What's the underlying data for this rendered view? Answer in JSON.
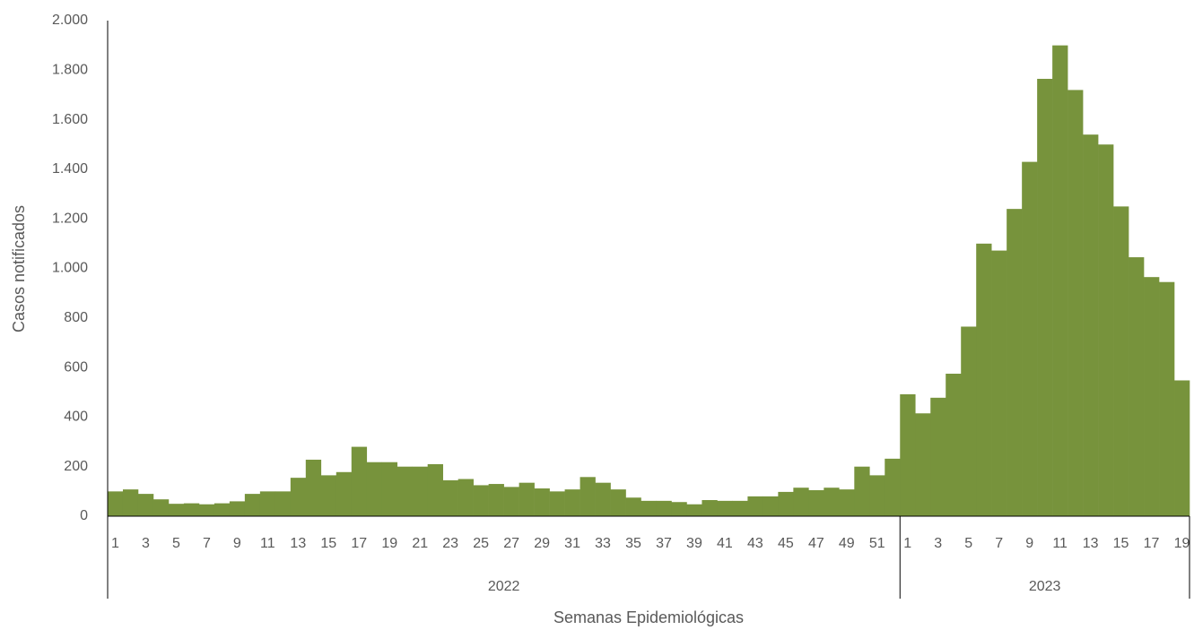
{
  "chart_data": {
    "type": "bar",
    "x_label": "Semanas Epidemiológicas",
    "y_label": "Casos notificados",
    "color": "#77933c",
    "grid": false,
    "groups": [
      {
        "name": "2022",
        "count": 52
      },
      {
        "name": "2023",
        "count": 19
      }
    ],
    "categories": [
      "1",
      null,
      "3",
      null,
      "5",
      null,
      "7",
      null,
      "9",
      null,
      "11",
      null,
      "13",
      null,
      "15",
      null,
      "17",
      null,
      "19",
      null,
      "21",
      null,
      "23",
      null,
      "25",
      null,
      "27",
      null,
      "29",
      null,
      "31",
      null,
      "33",
      null,
      "35",
      null,
      "37",
      null,
      "39",
      null,
      "41",
      null,
      "43",
      null,
      "45",
      null,
      "47",
      null,
      "49",
      null,
      "51",
      null,
      "1",
      null,
      "3",
      null,
      "5",
      null,
      "7",
      null,
      "9",
      null,
      "11",
      null,
      "13",
      null,
      "15",
      null,
      "17",
      null,
      "19"
    ],
    "values": [
      100,
      108,
      90,
      68,
      50,
      52,
      48,
      52,
      60,
      90,
      100,
      100,
      155,
      228,
      165,
      178,
      280,
      218,
      218,
      200,
      200,
      210,
      145,
      150,
      125,
      130,
      118,
      135,
      112,
      100,
      108,
      158,
      135,
      108,
      75,
      62,
      62,
      57,
      48,
      65,
      62,
      62,
      80,
      80,
      98,
      115,
      105,
      115,
      108,
      200,
      165,
      232,
      492,
      415,
      478,
      575,
      765,
      1100,
      1072,
      1240,
      1430,
      1765,
      1900,
      1720,
      1540,
      1500,
      1250,
      1045,
      965,
      945,
      548
    ],
    "ylim": [
      0,
      2000
    ],
    "yticks": [
      0,
      200,
      400,
      600,
      800,
      {
        "value": 1000,
        "label": "1.000"
      },
      {
        "value": 1200,
        "label": "1.200"
      },
      {
        "value": 1400,
        "label": "1.400"
      },
      {
        "value": 1600,
        "label": "1.600"
      },
      {
        "value": 1800,
        "label": "1.800"
      },
      {
        "value": 2000,
        "label": "2.000"
      }
    ]
  }
}
